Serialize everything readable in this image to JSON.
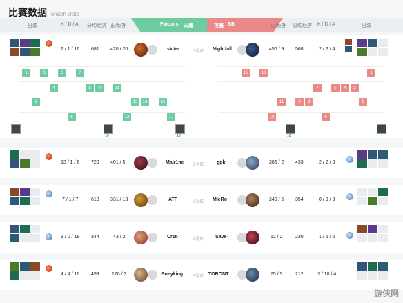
{
  "page": {
    "title": "比赛数据",
    "subtitle": "Match Data"
  },
  "header": {
    "left": {
      "items": "出装",
      "kda": "K / D / A",
      "gpm": "分均经济",
      "lhdn": "正/反补"
    },
    "right": {
      "items": "出装",
      "kda": "K / D / A",
      "gpm": "分均经济",
      "lhdn": "正/反补"
    },
    "team_left": "Falcons",
    "team_left_cn": "天鹰",
    "team_right": "夜魇",
    "team_right_score": "BB"
  },
  "players": [
    {
      "pos": "1号位",
      "left": {
        "kda": "2 / 1 / 16",
        "gpm": "681",
        "lhdn": "420 / 20",
        "name": "skiter"
      },
      "right": {
        "kda": "2 / 2 / 4",
        "gpm": "568",
        "lhdn": "456 / 9",
        "name": "Nightfall"
      }
    },
    {
      "pos": "2号位",
      "left": {
        "kda": "13 / 1 / 6",
        "gpm": "729",
        "lhdn": "401 / 5",
        "name": "Malr1ne"
      },
      "right": {
        "kda": "2 / 2 / 3",
        "gpm": "433",
        "lhdn": "286 / 2",
        "name": "gpk"
      }
    },
    {
      "pos": "3号位",
      "left": {
        "kda": "7 / 1 / 7",
        "gpm": "618",
        "lhdn": "331 / 13",
        "name": "ATF"
      },
      "right": {
        "kda": "0 / 9 / 3",
        "gpm": "354",
        "lhdn": "240 / 5",
        "name": "MieRo`"
      }
    },
    {
      "pos": "4号位",
      "left": {
        "kda": "3 / 0 / 18",
        "gpm": "344",
        "lhdn": "43 / 2",
        "name": "Cr1t-"
      },
      "right": {
        "kda": "1 / 6 / 6",
        "gpm": "230",
        "lhdn": "62 / 2",
        "name": "Save-"
      }
    },
    {
      "pos": "5号位",
      "left": {
        "kda": "4 / 4 / 11",
        "gpm": "459",
        "lhdn": "176 / 3",
        "name": "Sneyking"
      },
      "right": {
        "kda": "1 / 10 / 4",
        "gpm": "212",
        "lhdn": "75 / 5",
        "name": "TORONT..."
      }
    }
  ],
  "skills": {
    "left": [
      "1",
      "3",
      "5",
      "7",
      "4",
      "8",
      "9",
      "11",
      "2",
      "13",
      "14",
      "16",
      "6",
      "12",
      "17"
    ],
    "right": [
      "16",
      "13",
      "1",
      "7",
      "5",
      "4",
      "3",
      "11",
      "9",
      "8",
      "2",
      "12",
      "6"
    ],
    "talent_left": [
      "10",
      "18"
    ],
    "talent_right": [
      "10"
    ]
  },
  "watermark": "游侠网"
}
